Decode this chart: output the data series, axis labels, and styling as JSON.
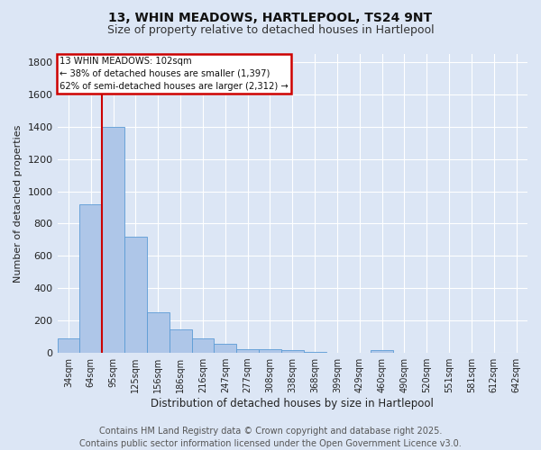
{
  "title_line1": "13, WHIN MEADOWS, HARTLEPOOL, TS24 9NT",
  "title_line2": "Size of property relative to detached houses in Hartlepool",
  "xlabel": "Distribution of detached houses by size in Hartlepool",
  "ylabel": "Number of detached properties",
  "categories": [
    "34sqm",
    "64sqm",
    "95sqm",
    "125sqm",
    "156sqm",
    "186sqm",
    "216sqm",
    "247sqm",
    "277sqm",
    "308sqm",
    "338sqm",
    "368sqm",
    "399sqm",
    "429sqm",
    "460sqm",
    "490sqm",
    "520sqm",
    "551sqm",
    "581sqm",
    "612sqm",
    "642sqm"
  ],
  "values": [
    90,
    920,
    1400,
    720,
    250,
    145,
    90,
    55,
    25,
    25,
    15,
    5,
    0,
    0,
    15,
    0,
    0,
    0,
    0,
    0,
    0
  ],
  "bar_color": "#aec6e8",
  "bar_edge_color": "#5b9bd5",
  "ylim": [
    0,
    1850
  ],
  "yticks": [
    0,
    200,
    400,
    600,
    800,
    1000,
    1200,
    1400,
    1600,
    1800
  ],
  "property_line_idx": 1.5,
  "annotation_title": "13 WHIN MEADOWS: 102sqm",
  "annotation_line1": "← 38% of detached houses are smaller (1,397)",
  "annotation_line2": "62% of semi-detached houses are larger (2,312) →",
  "annotation_box_color": "#ffffff",
  "annotation_box_edge_color": "#cc0000",
  "property_line_color": "#cc0000",
  "footer_line1": "Contains HM Land Registry data © Crown copyright and database right 2025.",
  "footer_line2": "Contains public sector information licensed under the Open Government Licence v3.0.",
  "background_color": "#dce6f5",
  "plot_bg_color": "#dce6f5",
  "grid_color": "#ffffff",
  "title_fontsize": 10,
  "subtitle_fontsize": 9,
  "footer_fontsize": 7
}
